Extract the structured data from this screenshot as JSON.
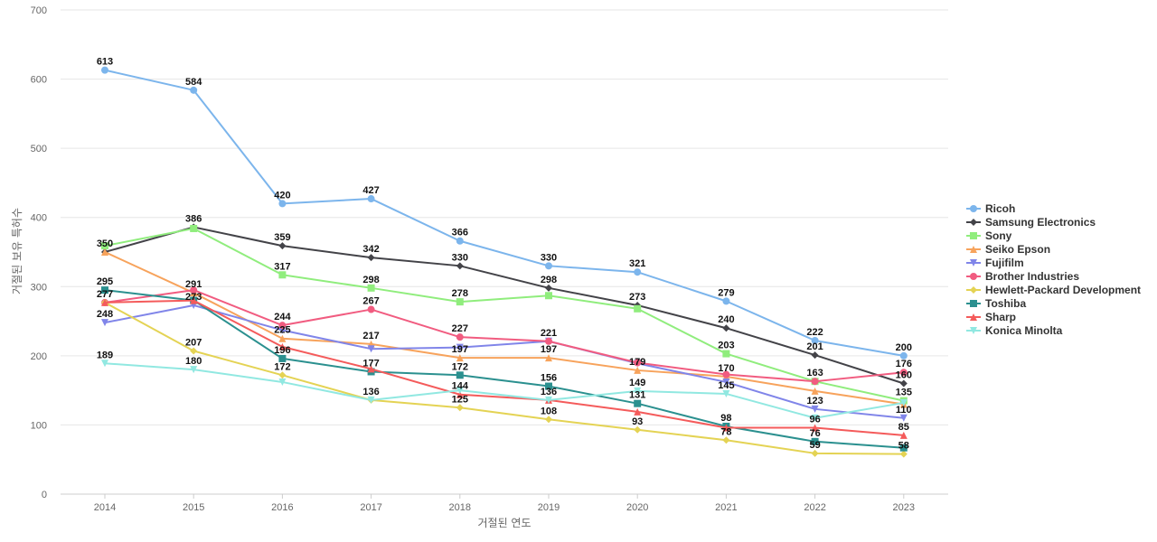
{
  "chart_data": {
    "type": "line",
    "title": "",
    "xlabel": "거절된 연도",
    "ylabel": "거절된 보유 특허수",
    "x": [
      2014,
      2015,
      2016,
      2017,
      2018,
      2019,
      2020,
      2021,
      2022,
      2023
    ],
    "ylim": [
      0,
      700
    ],
    "yticks": [
      0,
      100,
      200,
      300,
      400,
      500,
      600,
      700
    ],
    "grid": true,
    "legend": "right",
    "series": [
      {
        "name": "Ricoh",
        "color": "#7cb5ec",
        "marker": "circle",
        "values": [
          613,
          584,
          420,
          427,
          366,
          330,
          321,
          279,
          222,
          200
        ]
      },
      {
        "name": "Samsung Electronics",
        "color": "#434348",
        "marker": "diamond",
        "values": [
          350,
          386,
          359,
          342,
          330,
          298,
          273,
          240,
          201,
          160
        ]
      },
      {
        "name": "Sony",
        "color": "#90ed7d",
        "marker": "square",
        "values": [
          359,
          384,
          317,
          298,
          278,
          287,
          268,
          203,
          163,
          135
        ]
      },
      {
        "name": "Seiko Epson",
        "color": "#f7a35c",
        "marker": "triangle",
        "values": [
          350,
          291,
          225,
          217,
          197,
          197,
          179,
          170,
          149,
          130
        ]
      },
      {
        "name": "Fujifilm",
        "color": "#8085e9",
        "marker": "triangle-down",
        "values": [
          248,
          273,
          237,
          210,
          212,
          221,
          189,
          162,
          123,
          110
        ]
      },
      {
        "name": "Brother Industries",
        "color": "#f15c80",
        "marker": "circle",
        "values": [
          277,
          295,
          244,
          267,
          227,
          221,
          190,
          173,
          163,
          176
        ]
      },
      {
        "name": "Hewlett-Packard Development",
        "color": "#e4d354",
        "marker": "diamond",
        "values": [
          277,
          207,
          172,
          136,
          125,
          108,
          93,
          78,
          59,
          58
        ]
      },
      {
        "name": "Toshiba",
        "color": "#2b908f",
        "marker": "square",
        "values": [
          295,
          280,
          196,
          177,
          172,
          156,
          131,
          98,
          76,
          67
        ]
      },
      {
        "name": "Sharp",
        "color": "#f45b5b",
        "marker": "triangle",
        "values": [
          277,
          280,
          213,
          181,
          144,
          136,
          119,
          96,
          96,
          85
        ]
      },
      {
        "name": "Konica Minolta",
        "color": "#91e8e1",
        "marker": "triangle-down",
        "values": [
          189,
          180,
          162,
          136,
          150,
          136,
          149,
          145,
          110,
          132
        ]
      }
    ],
    "data_labels": [
      {
        "x": 2014,
        "y": 613,
        "text": "613"
      },
      {
        "x": 2015,
        "y": 584,
        "text": "584"
      },
      {
        "x": 2016,
        "y": 420,
        "text": "420"
      },
      {
        "x": 2017,
        "y": 427,
        "text": "427"
      },
      {
        "x": 2018,
        "y": 366,
        "text": "366"
      },
      {
        "x": 2019,
        "y": 330,
        "text": "330"
      },
      {
        "x": 2020,
        "y": 321,
        "text": "321"
      },
      {
        "x": 2021,
        "y": 279,
        "text": "279"
      },
      {
        "x": 2022,
        "y": 222,
        "text": "222"
      },
      {
        "x": 2023,
        "y": 200,
        "text": "200"
      },
      {
        "x": 2015,
        "y": 386,
        "text": "386"
      },
      {
        "x": 2016,
        "y": 359,
        "text": "359"
      },
      {
        "x": 2017,
        "y": 342,
        "text": "342"
      },
      {
        "x": 2018,
        "y": 330,
        "text": "330"
      },
      {
        "x": 2019,
        "y": 298,
        "text": "298"
      },
      {
        "x": 2020,
        "y": 273,
        "text": "273"
      },
      {
        "x": 2021,
        "y": 240,
        "text": "240"
      },
      {
        "x": 2022,
        "y": 201,
        "text": "201"
      },
      {
        "x": 2014,
        "y": 350,
        "text": "350"
      },
      {
        "x": 2016,
        "y": 317,
        "text": "317"
      },
      {
        "x": 2017,
        "y": 298,
        "text": "298"
      },
      {
        "x": 2018,
        "y": 278,
        "text": "278"
      },
      {
        "x": 2021,
        "y": 203,
        "text": "203"
      },
      {
        "x": 2022,
        "y": 163,
        "text": "163"
      },
      {
        "x": 2015,
        "y": 291,
        "text": "291"
      },
      {
        "x": 2016,
        "y": 225,
        "text": "225"
      },
      {
        "x": 2017,
        "y": 217,
        "text": "217"
      },
      {
        "x": 2018,
        "y": 197,
        "text": "197"
      },
      {
        "x": 2019,
        "y": 197,
        "text": "197"
      },
      {
        "x": 2020,
        "y": 179,
        "text": "179"
      },
      {
        "x": 2021,
        "y": 170,
        "text": "170"
      },
      {
        "x": 2022,
        "y": 123,
        "text": "123"
      },
      {
        "x": 2023,
        "y": 110,
        "text": "110"
      },
      {
        "x": 2014,
        "y": 248,
        "text": "248"
      },
      {
        "x": 2015,
        "y": 273,
        "text": "273"
      },
      {
        "x": 2016,
        "y": 244,
        "text": "244"
      },
      {
        "x": 2017,
        "y": 267,
        "text": "267"
      },
      {
        "x": 2018,
        "y": 227,
        "text": "227"
      },
      {
        "x": 2019,
        "y": 221,
        "text": "221"
      },
      {
        "x": 2023,
        "y": 176,
        "text": "176"
      },
      {
        "x": 2014,
        "y": 277,
        "text": "277"
      },
      {
        "x": 2015,
        "y": 207,
        "text": "207"
      },
      {
        "x": 2016,
        "y": 172,
        "text": "172"
      },
      {
        "x": 2017,
        "y": 136,
        "text": "136"
      },
      {
        "x": 2018,
        "y": 125,
        "text": "125"
      },
      {
        "x": 2019,
        "y": 108,
        "text": "108"
      },
      {
        "x": 2020,
        "y": 93,
        "text": "93"
      },
      {
        "x": 2021,
        "y": 78,
        "text": "78"
      },
      {
        "x": 2022,
        "y": 59,
        "text": "59"
      },
      {
        "x": 2023,
        "y": 58,
        "text": "58"
      },
      {
        "x": 2014,
        "y": 295,
        "text": "295"
      },
      {
        "x": 2016,
        "y": 196,
        "text": "196"
      },
      {
        "x": 2017,
        "y": 177,
        "text": "177"
      },
      {
        "x": 2018,
        "y": 172,
        "text": "172"
      },
      {
        "x": 2019,
        "y": 156,
        "text": "156"
      },
      {
        "x": 2020,
        "y": 131,
        "text": "131"
      },
      {
        "x": 2021,
        "y": 98,
        "text": "98"
      },
      {
        "x": 2022,
        "y": 76,
        "text": "76"
      },
      {
        "x": 2018,
        "y": 144,
        "text": "144"
      },
      {
        "x": 2019,
        "y": 136,
        "text": "136"
      },
      {
        "x": 2020,
        "y": 149,
        "text": "149"
      },
      {
        "x": 2021,
        "y": 145,
        "text": "145"
      },
      {
        "x": 2022,
        "y": 96,
        "text": "96"
      },
      {
        "x": 2023,
        "y": 85,
        "text": "85"
      },
      {
        "x": 2023,
        "y": 135,
        "text": "135"
      },
      {
        "x": 2014,
        "y": 189,
        "text": "189"
      },
      {
        "x": 2015,
        "y": 180,
        "text": "180"
      },
      {
        "x": 2023,
        "y": 160,
        "text": "160"
      }
    ]
  }
}
